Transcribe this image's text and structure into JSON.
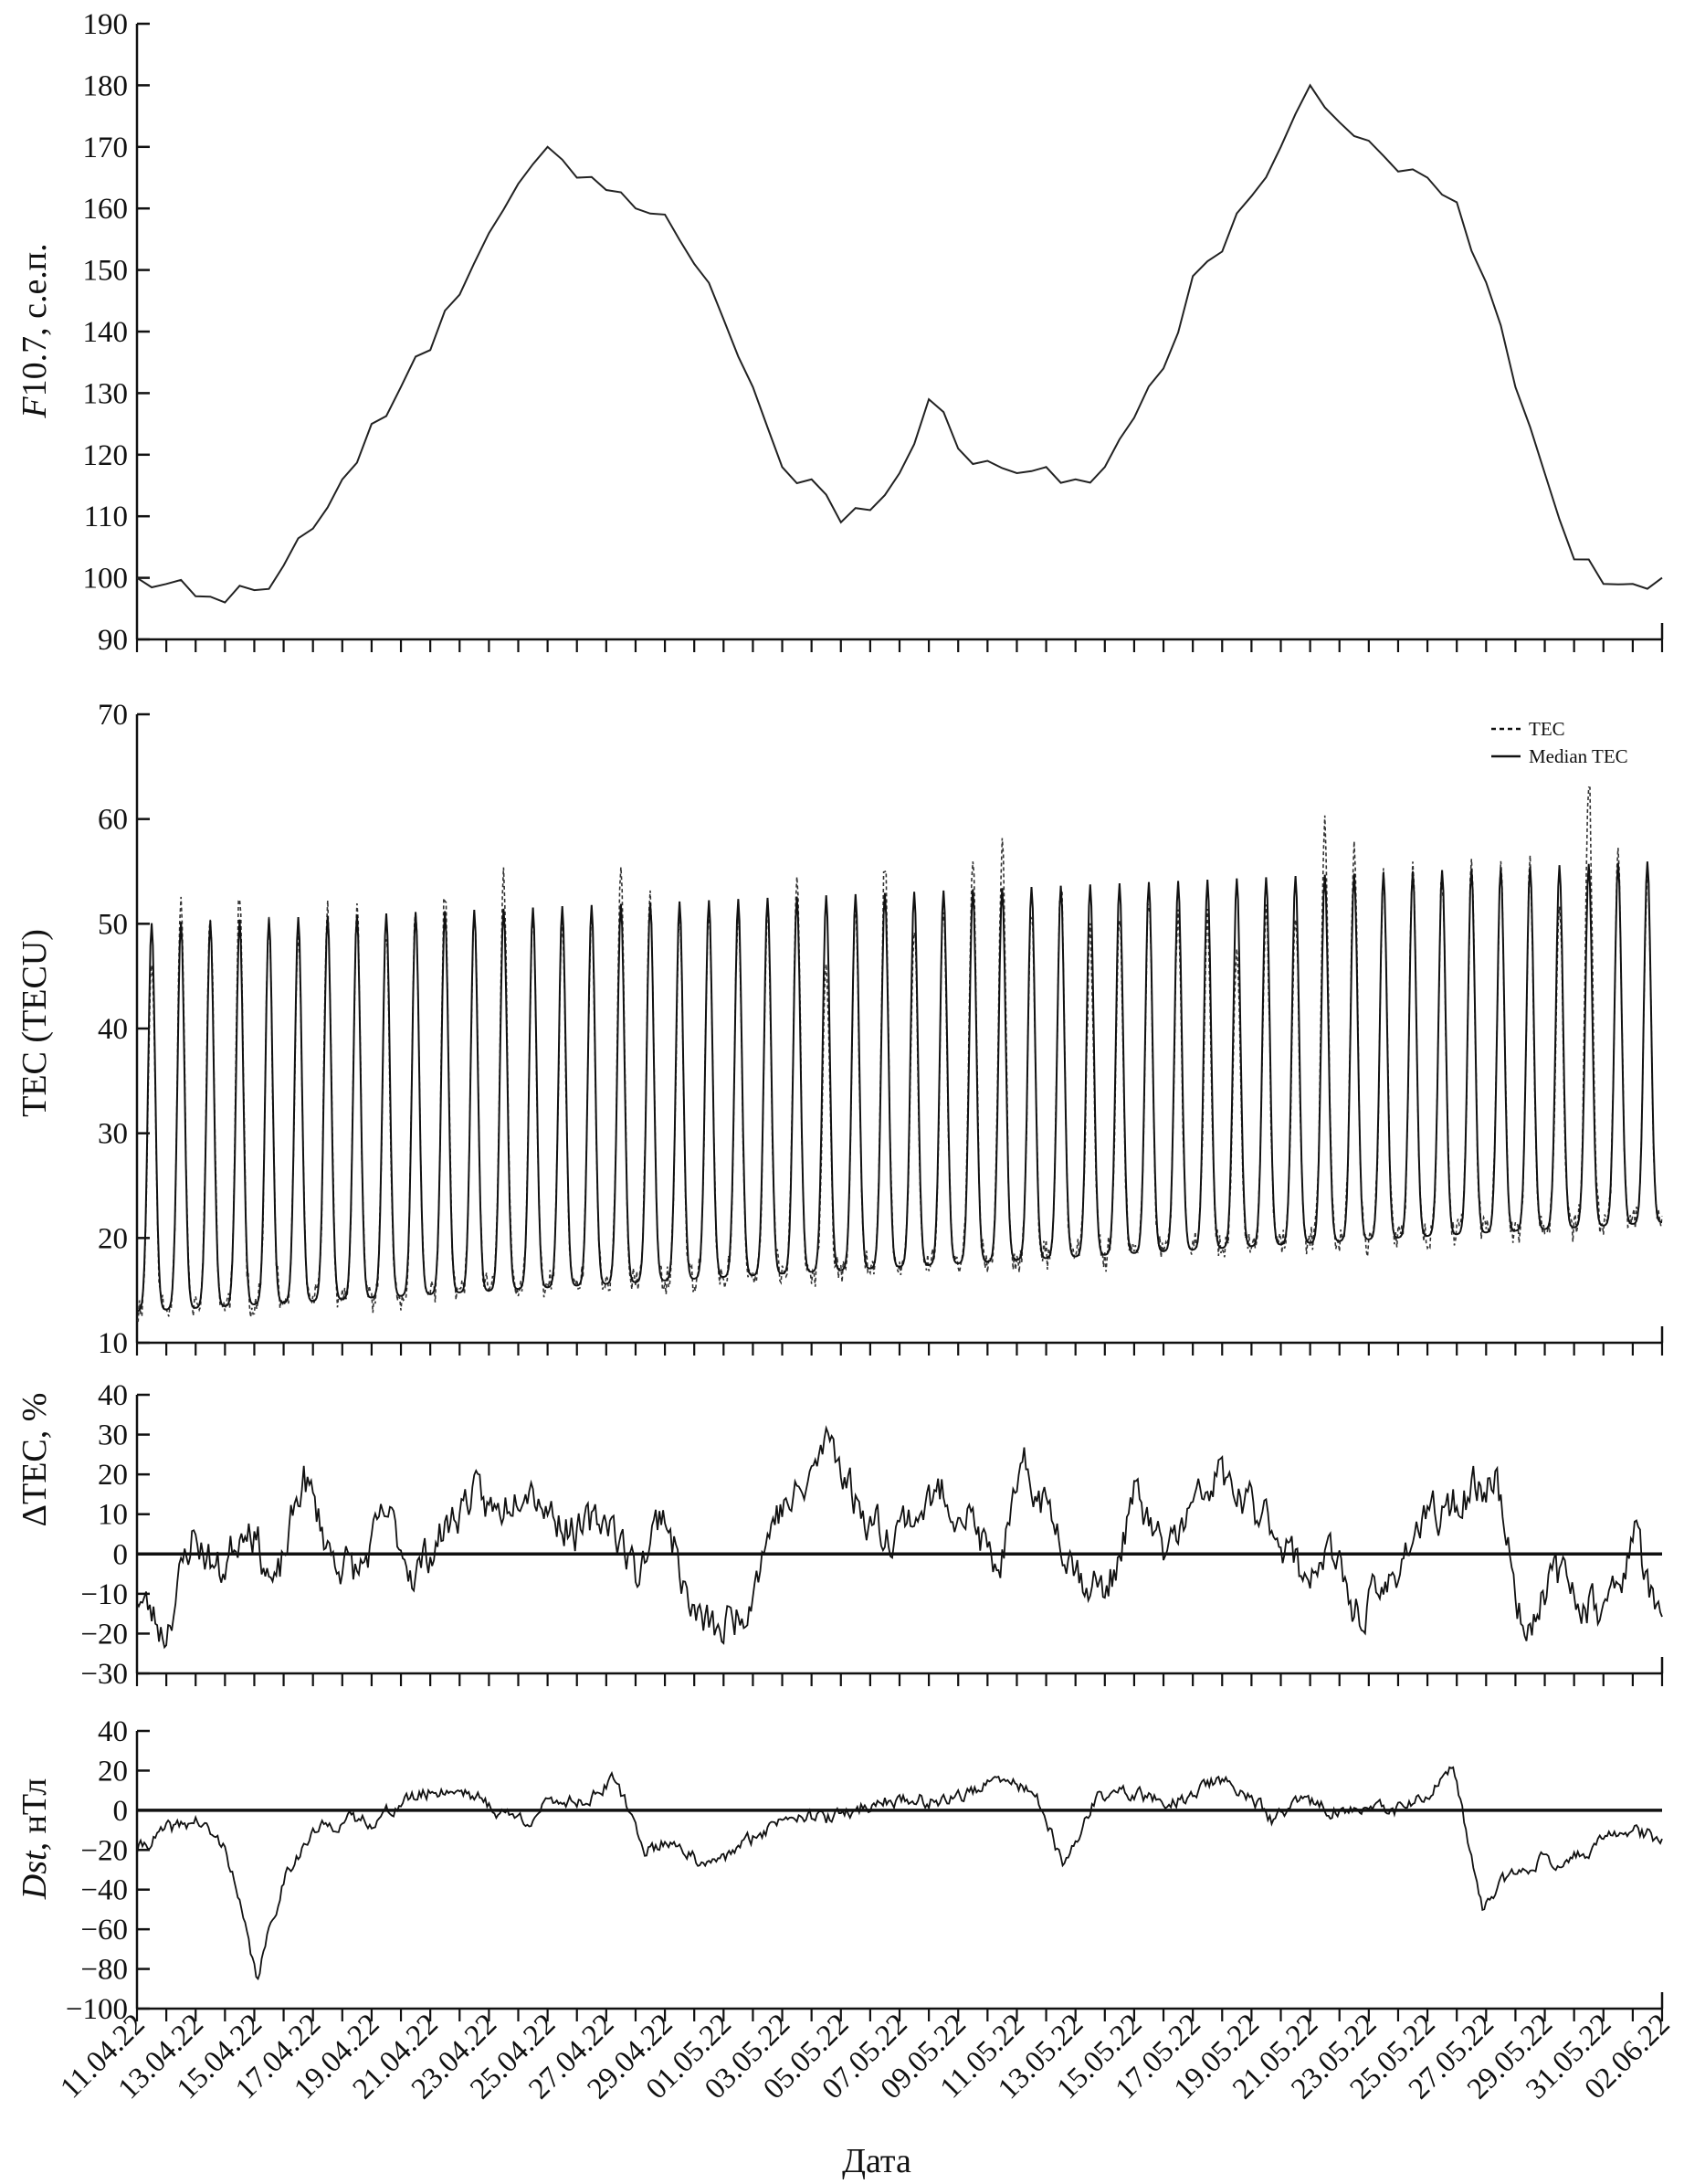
{
  "x_axis": {
    "label": "Дата",
    "ticks": [
      "11.04.22",
      "13.04.22",
      "15.04.22",
      "17.04.22",
      "19.04.22",
      "21.04.22",
      "23.04.22",
      "25.04.22",
      "27.04.22",
      "29.04.22",
      "01.05.22",
      "03.05.22",
      "05.05.22",
      "07.05.22",
      "09.05.22",
      "11.05.22",
      "13.05.22",
      "15.05.22",
      "17.05.22",
      "19.05.22",
      "21.05.22",
      "23.05.22",
      "25.05.22",
      "27.05.22",
      "29.05.22",
      "31.05.22",
      "02.06.22"
    ]
  },
  "chart_data": [
    {
      "type": "line",
      "ylabel_italic": "F",
      "ylabel_rest": "10.7, с.е.п.",
      "xlabel": "Дата",
      "ylim": [
        90,
        190
      ],
      "yticks": [
        90,
        100,
        110,
        120,
        130,
        140,
        150,
        160,
        170,
        180,
        190
      ],
      "xlim_days": [
        0,
        52
      ],
      "series": [
        {
          "line": "solid",
          "x_days": [
            0,
            1,
            2,
            3,
            4,
            5,
            6,
            7,
            8,
            9,
            10,
            11,
            12,
            13,
            14,
            15,
            16,
            17,
            18,
            19,
            20,
            21,
            22,
            23,
            24,
            25,
            26,
            27,
            28,
            29,
            30,
            31,
            32,
            33,
            34,
            35,
            36,
            37,
            38,
            39,
            40,
            41,
            42,
            43,
            44,
            45,
            46,
            47,
            48,
            49,
            50,
            51,
            52
          ],
          "values": [
            100,
            99,
            97,
            96,
            98,
            102,
            108,
            116,
            125,
            131,
            137,
            146,
            156,
            164,
            170,
            165,
            163,
            160,
            159,
            151,
            142,
            131,
            118,
            116,
            109,
            111,
            117,
            129,
            121,
            119,
            117,
            118,
            116,
            118,
            126,
            134,
            149,
            153,
            162,
            170,
            180,
            174,
            171,
            166,
            165,
            161,
            148,
            131,
            117,
            103,
            99,
            99,
            100
          ]
        }
      ]
    },
    {
      "type": "line",
      "ylabel": "TEC (TECU)",
      "ylim": [
        10,
        70
      ],
      "yticks": [
        10,
        20,
        30,
        40,
        50,
        60,
        70
      ],
      "legend": {
        "position": "top-right",
        "entries": [
          "TEC",
          "Median TEC"
        ]
      },
      "diurnal_cycle": {
        "days": 52,
        "median_night_min": {
          "start": 13,
          "end": 21.5
        },
        "median_day_max": {
          "start": 50,
          "end": 56
        },
        "tec_daily_peaks": [
          47,
          53,
          52,
          53,
          50,
          49,
          52,
          51,
          49,
          51,
          53,
          51,
          55,
          51,
          50,
          51,
          55,
          53,
          51,
          51,
          51,
          51,
          55,
          46,
          51,
          56,
          50,
          51,
          57,
          58,
          52,
          54,
          49,
          51,
          53,
          51,
          51,
          48,
          52,
          51,
          59,
          57,
          55,
          55,
          55,
          55,
          56,
          55,
          52,
          64,
          57,
          55
        ],
        "series": [
          {
            "name": "TEC",
            "line": "dashed"
          },
          {
            "name": "Median TEC",
            "line": "solid"
          }
        ]
      }
    },
    {
      "type": "line",
      "ylabel": "ΔTEC, %",
      "ylim": [
        -30,
        40
      ],
      "yticks": [
        -30,
        -20,
        -10,
        0,
        10,
        20,
        30,
        40
      ],
      "reference_line": 0,
      "series": [
        {
          "line": "solid",
          "daily_values": [
            -10,
            -20,
            5,
            -5,
            10,
            -10,
            20,
            0,
            -5,
            10,
            -5,
            5,
            15,
            10,
            20,
            10,
            5,
            10,
            -5,
            12,
            -15,
            -20,
            -12,
            10,
            15,
            30,
            12,
            5,
            10,
            15,
            10,
            -5,
            20,
            10,
            -5,
            -10,
            15,
            0,
            10,
            20,
            12,
            8,
            -5,
            0,
            -15,
            -10,
            5,
            10,
            15,
            20,
            -20,
            -5,
            -10,
            -15,
            5,
            -20
          ]
        }
      ]
    },
    {
      "type": "line",
      "ylabel_italic": "Dst",
      "ylabel_rest": ", нТл",
      "ylim": [
        -100,
        40
      ],
      "yticks": [
        -100,
        -80,
        -60,
        -40,
        -20,
        0,
        20,
        40
      ],
      "reference_line": 0,
      "series": [
        {
          "line": "solid",
          "daily_values": [
            -20,
            -10,
            -5,
            -20,
            -85,
            -30,
            -10,
            -5,
            -5,
            5,
            10,
            10,
            0,
            -5,
            5,
            5,
            15,
            -20,
            -15,
            -30,
            -20,
            -10,
            0,
            -5,
            0,
            5,
            5,
            5,
            10,
            15,
            10,
            -30,
            5,
            10,
            5,
            5,
            15,
            10,
            -5,
            5,
            0,
            0,
            0,
            5,
            20,
            -50,
            -30,
            -25,
            -25,
            -15,
            -10,
            -15
          ]
        }
      ]
    }
  ]
}
